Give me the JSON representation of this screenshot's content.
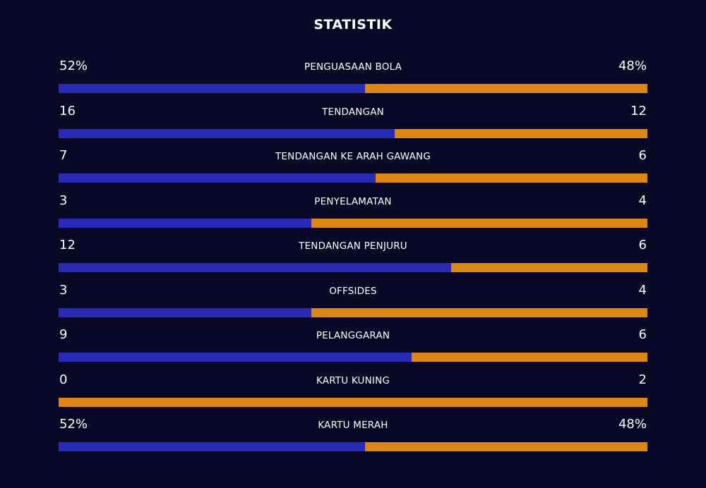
{
  "title": "STATISTIK",
  "colors": {
    "background": "#080826",
    "home": "#2a2ab8",
    "away": "#dd8612"
  },
  "stats": [
    {
      "name": "PENGUASAAN BOLA",
      "left": "52%",
      "right": "48%",
      "left_share": 0.52
    },
    {
      "name": "TENDANGAN",
      "left": "16",
      "right": "12",
      "left_share": 0.571
    },
    {
      "name": "TENDANGAN KE ARAH GAWANG",
      "left": "7",
      "right": "6",
      "left_share": 0.538
    },
    {
      "name": "PENYELAMATAN",
      "left": "3",
      "right": "4",
      "left_share": 0.429
    },
    {
      "name": "TENDANGAN PENJURU",
      "left": "12",
      "right": "6",
      "left_share": 0.667
    },
    {
      "name": "OFFSIDES",
      "left": "3",
      "right": "4",
      "left_share": 0.429
    },
    {
      "name": "PELANGGARAN",
      "left": "9",
      "right": "6",
      "left_share": 0.6
    },
    {
      "name": "KARTU KUNING",
      "left": "0",
      "right": "2",
      "left_share": 0.0
    },
    {
      "name": "KARTU MERAH",
      "left": "52%",
      "right": "48%",
      "left_share": 0.52
    }
  ]
}
